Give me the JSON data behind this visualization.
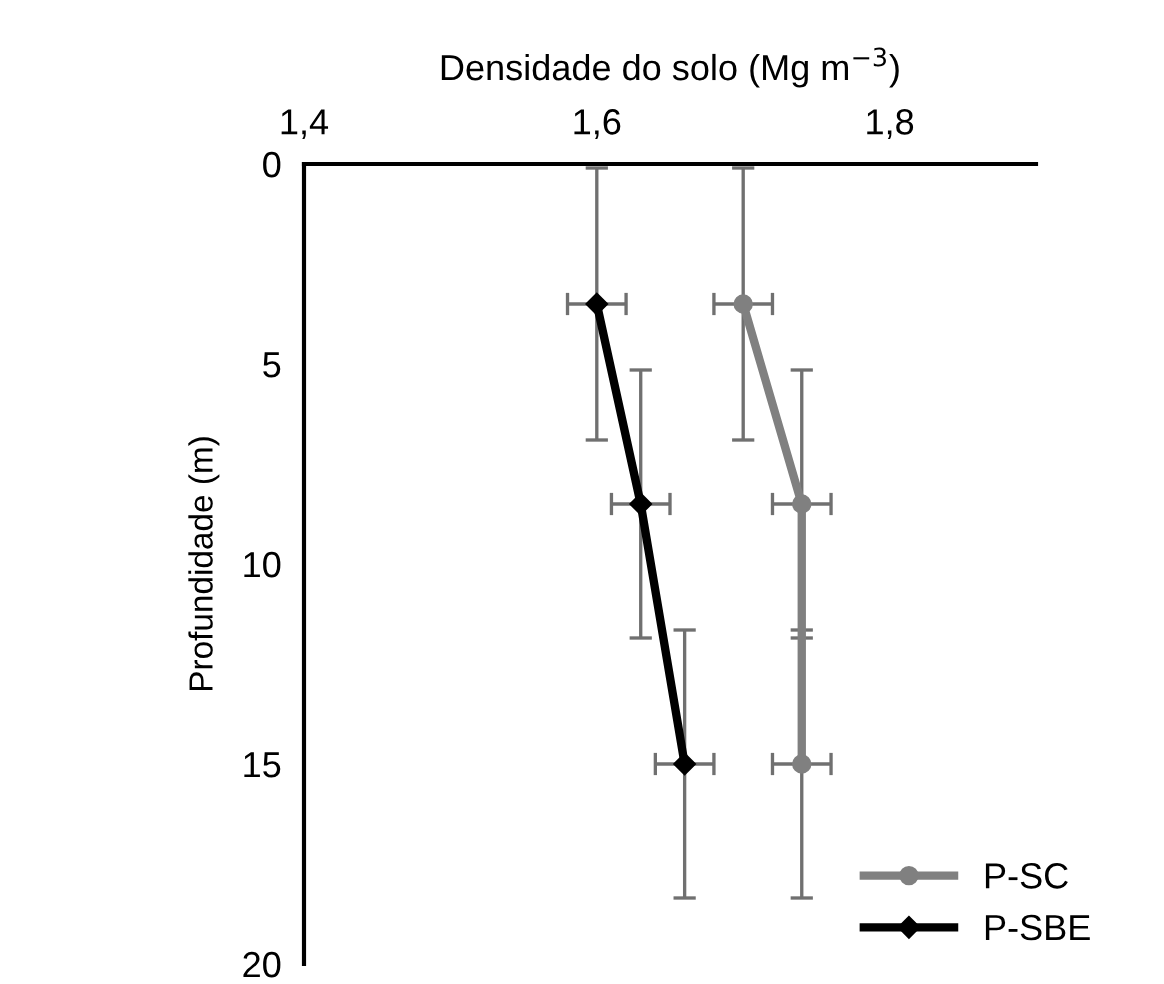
{
  "chart_data": {
    "type": "line",
    "xlabel": "Densidade do solo (Mg m$^{−3}$)",
    "ylabel": "Profundidade (m)",
    "xlim": [
      1.4,
      1.9
    ],
    "xticks": [
      {
        "value": 1.4,
        "label": "1,4"
      },
      {
        "value": 1.6,
        "label": "1,6"
      },
      {
        "value": 1.8,
        "label": "1,8"
      }
    ],
    "ylim": [
      20,
      0
    ],
    "yticks": [
      0,
      5,
      10,
      15,
      20
    ],
    "grid": false,
    "legend": "bottom right",
    "line_style": "solid",
    "series": [
      {
        "name": "P-SC",
        "color": "#808080",
        "marker": "circle",
        "x": [
          1.7,
          1.74,
          1.74
        ],
        "values": [
          3.5,
          8.5,
          15.0
        ],
        "errors": [
          3.4,
          3.35,
          3.35
        ],
        "xerrors": [
          0.02,
          0.02,
          0.02
        ]
      },
      {
        "name": "P-SBE",
        "color": "#000000",
        "marker": "diamond",
        "x": [
          1.6,
          1.63,
          1.66
        ],
        "values": [
          3.5,
          8.5,
          15.0
        ],
        "errors": [
          3.4,
          3.35,
          3.35
        ],
        "xerrors": [
          0.02,
          0.02,
          0.02
        ]
      }
    ]
  }
}
